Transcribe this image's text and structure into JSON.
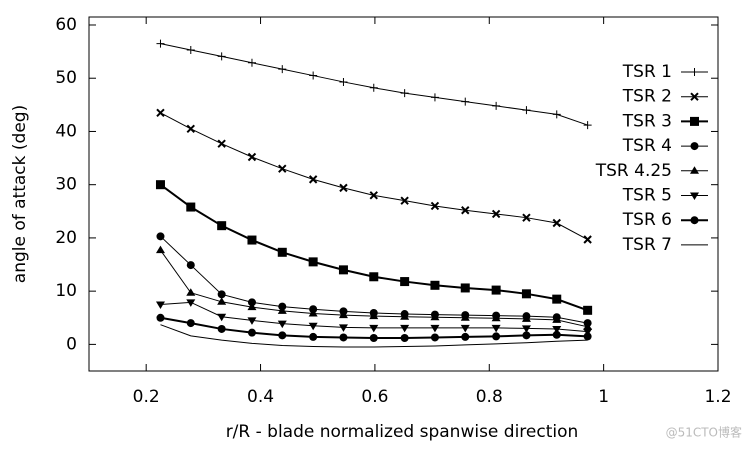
{
  "chart_data": {
    "type": "line",
    "xlabel": "r/R - blade normalized spanwise direction",
    "ylabel": "angle of attack (deg)",
    "x": [
      0.225,
      0.278,
      0.332,
      0.385,
      0.438,
      0.492,
      0.545,
      0.598,
      0.652,
      0.705,
      0.758,
      0.812,
      0.865,
      0.918,
      0.972
    ],
    "series": [
      {
        "name": "TSR 1",
        "color": "#000000",
        "marker": "plus",
        "linewidth": 1,
        "values": [
          56.5,
          55.3,
          54.1,
          52.9,
          51.7,
          50.5,
          49.3,
          48.2,
          47.2,
          46.4,
          45.6,
          44.8,
          44,
          43.2,
          41.2
        ]
      },
      {
        "name": "TSR 2",
        "color": "#000000",
        "marker": "cross",
        "linewidth": 1,
        "values": [
          43.5,
          40.5,
          37.7,
          35.2,
          33,
          31,
          29.4,
          28,
          27,
          26,
          25.2,
          24.5,
          23.8,
          22.8,
          19.7
        ]
      },
      {
        "name": "TSR 3",
        "color": "#000000",
        "marker": "square",
        "linewidth": 2,
        "values": [
          30,
          25.8,
          22.3,
          19.6,
          17.3,
          15.5,
          14,
          12.7,
          11.8,
          11.1,
          10.6,
          10.2,
          9.5,
          8.5,
          6.4
        ]
      },
      {
        "name": "TSR 4",
        "color": "#000000",
        "marker": "circle",
        "linewidth": 1,
        "values": [
          20.3,
          14.9,
          9.4,
          7.9,
          7.1,
          6.6,
          6.2,
          5.9,
          5.7,
          5.6,
          5.5,
          5.4,
          5.3,
          5.1,
          4
        ]
      },
      {
        "name": "TSR 4.25",
        "color": "#000000",
        "marker": "triangle",
        "linewidth": 1,
        "values": [
          17.7,
          9.7,
          8,
          7,
          6.3,
          5.8,
          5.5,
          5.3,
          5.2,
          5.1,
          5,
          4.9,
          4.8,
          4.6,
          3.3
        ]
      },
      {
        "name": "TSR 5",
        "color": "#000000",
        "marker": "triangle-down",
        "linewidth": 1,
        "values": [
          7.5,
          7.9,
          5.2,
          4.5,
          3.9,
          3.5,
          3.2,
          3.1,
          3.1,
          3.1,
          3.1,
          3.1,
          3,
          2.9,
          2.4
        ]
      },
      {
        "name": "TSR 6",
        "color": "#000000",
        "marker": "circle",
        "linewidth": 2,
        "values": [
          5,
          4,
          2.9,
          2.2,
          1.7,
          1.4,
          1.3,
          1.2,
          1.2,
          1.3,
          1.4,
          1.5,
          1.7,
          1.8,
          1.5
        ]
      },
      {
        "name": "TSR 7",
        "color": "#000000",
        "marker": "none",
        "linewidth": 1,
        "values": [
          3.7,
          1.6,
          0.8,
          0.2,
          -0.2,
          -0.4,
          -0.5,
          -0.5,
          -0.4,
          -0.3,
          -0.1,
          0.1,
          0.3,
          0.6,
          0.8
        ]
      }
    ],
    "xlim": [
      0.1,
      1.2
    ],
    "xticks": [
      0.2,
      0.4,
      0.6,
      0.8,
      1,
      1.2
    ],
    "ylim": [
      -5,
      61.5
    ],
    "yticks": [
      0,
      10,
      20,
      30,
      40,
      50,
      60
    ],
    "legend": "upper right",
    "grid": false
  },
  "watermark": "@51CTO博客"
}
